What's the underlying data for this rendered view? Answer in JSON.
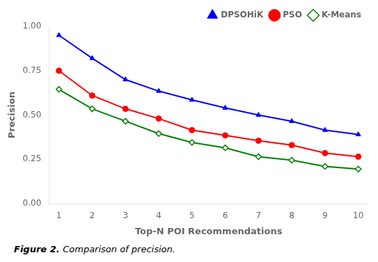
{
  "chart_data": {
    "type": "line",
    "x": [
      1,
      2,
      3,
      4,
      5,
      6,
      7,
      8,
      9,
      10
    ],
    "series": [
      {
        "name": "DPSOHiK",
        "color": "#0000ff",
        "marker": "triangle",
        "values": [
          0.95,
          0.82,
          0.7,
          0.635,
          0.585,
          0.54,
          0.5,
          0.465,
          0.415,
          0.39
        ]
      },
      {
        "name": "PSO",
        "color": "#ff0000",
        "marker": "circle",
        "values": [
          0.75,
          0.61,
          0.535,
          0.48,
          0.415,
          0.385,
          0.355,
          0.33,
          0.285,
          0.265
        ]
      },
      {
        "name": "K-Means",
        "color": "#008000",
        "marker": "open-diamond",
        "values": [
          0.645,
          0.535,
          0.465,
          0.395,
          0.345,
          0.315,
          0.265,
          0.245,
          0.21,
          0.195
        ]
      }
    ],
    "xlabel": "Top-N POI Recommendations",
    "ylabel": "Precision",
    "xlim": [
      0.7,
      10.3
    ],
    "xticks": [
      1,
      2,
      3,
      4,
      5,
      6,
      7,
      8,
      9,
      10
    ],
    "ylim": [
      0.0,
      1.0
    ],
    "yticks": [
      {
        "value": 0,
        "label": "0.00"
      },
      0.25,
      {
        "value": 0.5,
        "label": "0.50"
      },
      0.75,
      {
        "value": 1,
        "label": "1.00"
      }
    ],
    "grid": false,
    "legend": "upper right",
    "annotations": [
      "Figure 2.",
      "Comparison of precision."
    ]
  }
}
